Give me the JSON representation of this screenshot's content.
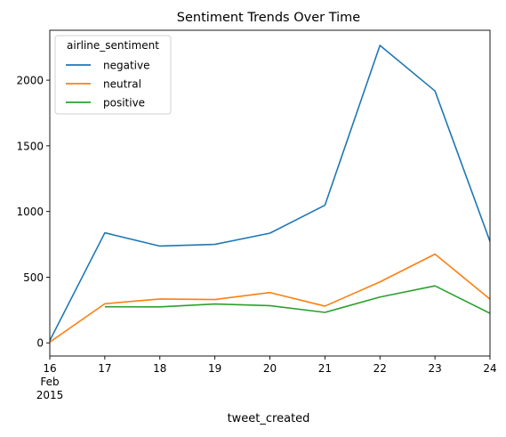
{
  "chart_data": {
    "type": "line",
    "title": "Sentiment Trends Over Time",
    "xlabel": "tweet_created",
    "ylabel": "",
    "x": [
      "2015-02-16",
      "2015-02-17",
      "2015-02-18",
      "2015-02-19",
      "2015-02-20",
      "2015-02-21",
      "2015-02-22",
      "2015-02-23",
      "2015-02-24"
    ],
    "x_tick_labels": [
      {
        "lines": [
          "16",
          "Feb",
          "2015"
        ]
      },
      {
        "lines": [
          "17"
        ]
      },
      {
        "lines": [
          "18"
        ]
      },
      {
        "lines": [
          "19"
        ]
      },
      {
        "lines": [
          "20"
        ]
      },
      {
        "lines": [
          "21"
        ]
      },
      {
        "lines": [
          "22"
        ]
      },
      {
        "lines": [
          "23"
        ]
      },
      {
        "lines": [
          "24"
        ]
      }
    ],
    "ylim": [
      -100,
      2380
    ],
    "y_ticks": [
      0,
      500,
      1000,
      1500,
      2000
    ],
    "grid": false,
    "legend": {
      "title": "airline_sentiment",
      "placement": "upper-left"
    },
    "series": [
      {
        "name": "negative",
        "color": "#1f77b4",
        "values": [
          18,
          838,
          737,
          750,
          835,
          1048,
          2265,
          1918,
          772
        ]
      },
      {
        "name": "neutral",
        "color": "#ff7f0e",
        "values": [
          6,
          298,
          334,
          330,
          383,
          280,
          464,
          676,
          333
        ]
      },
      {
        "name": "positive",
        "color": "#2ca02c",
        "values": [
          null,
          275,
          274,
          296,
          283,
          232,
          349,
          434,
          225
        ]
      }
    ]
  }
}
